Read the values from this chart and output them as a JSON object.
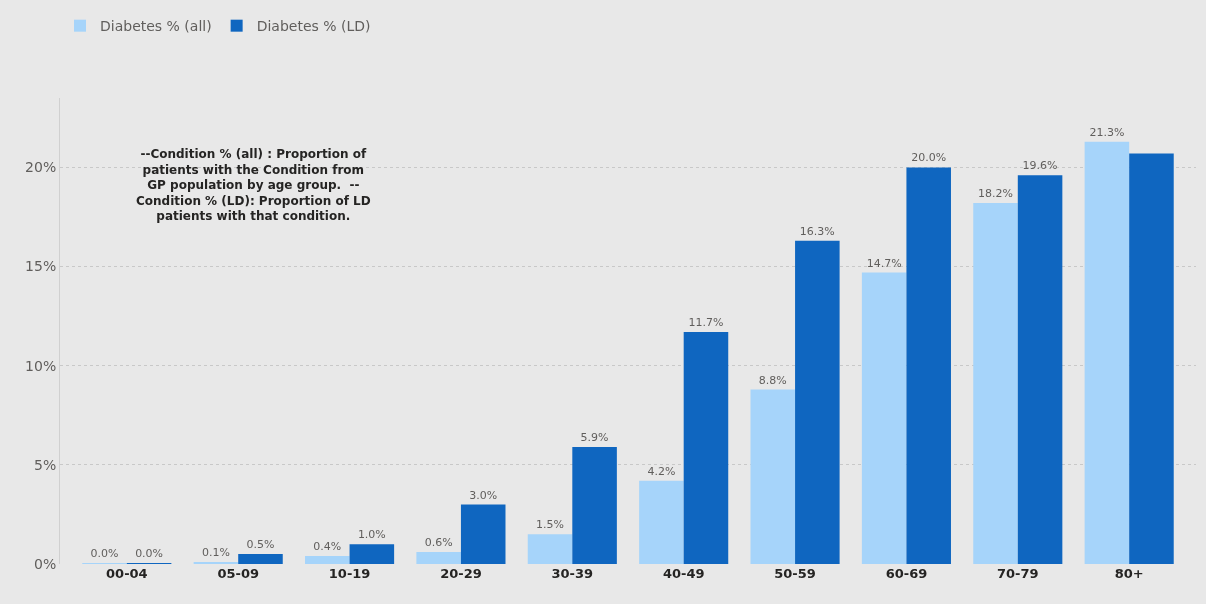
{
  "chart_data": {
    "type": "bar",
    "categories": [
      "00-04",
      "05-09",
      "10-19",
      "20-29",
      "30-39",
      "40-49",
      "50-59",
      "60-69",
      "70-79",
      "80+"
    ],
    "series": [
      {
        "name": "Diabetes % (all)",
        "color": "#a6d4fa",
        "values": [
          0.04,
          0.1,
          0.4,
          0.6,
          1.5,
          4.2,
          8.8,
          14.7,
          18.2,
          21.3
        ],
        "value_labels": [
          "0.0%",
          "0.1%",
          "0.4%",
          "0.6%",
          "1.5%",
          "4.2%",
          "8.8%",
          "14.7%",
          "18.2%",
          "21.3%"
        ]
      },
      {
        "name": "Diabetes % (LD)",
        "color": "#0f66c0",
        "values": [
          0.02,
          0.5,
          1.0,
          3.0,
          5.9,
          11.7,
          16.3,
          20.0,
          19.6,
          20.7
        ],
        "value_labels": [
          "0.0%",
          "0.5%",
          "1.0%",
          "3.0%",
          "5.9%",
          "11.7%",
          "16.3%",
          "20.0%",
          "19.6%",
          null
        ]
      }
    ],
    "ylim": [
      0,
      23.5
    ],
    "yticks": [
      {
        "value": 0,
        "label": "0%"
      },
      {
        "value": 5,
        "label": "5%"
      },
      {
        "value": 10,
        "label": "10%"
      },
      {
        "value": 15,
        "label": "15%"
      },
      {
        "value": 20,
        "label": "20%"
      }
    ],
    "grid": "y",
    "legend": "top left",
    "annotations": [
      "--Condition % (all) : Proportion of\npatients with the Condition from\nGP population by age group.  --\nCondition % (LD): Proportion of LD\npatients with that condition."
    ]
  }
}
